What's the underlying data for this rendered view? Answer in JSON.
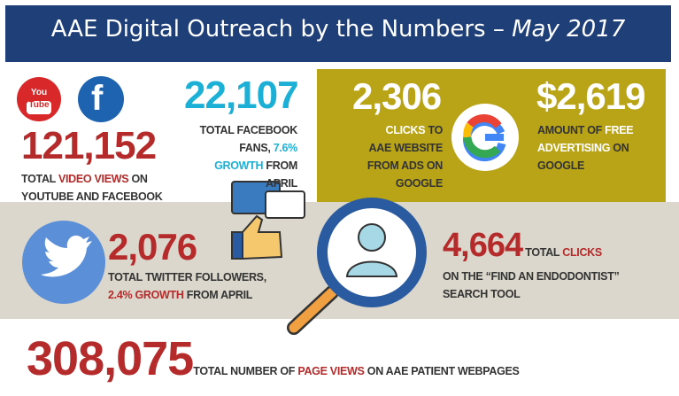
{
  "header": {
    "title": "AAE Digital Outreach by the Numbers – ",
    "title_month": "May 2017"
  },
  "icons": {
    "youtube": [
      "You",
      "Tube"
    ],
    "facebook": "f"
  },
  "stats": [
    {
      "number": "121,152",
      "caption": [
        "TOTAL ",
        "VIDEO VIEWS",
        " ON YOUTUBE AND FACEBOOK"
      ]
    },
    {
      "number": "22,107",
      "caption": [
        "TOTAL FACEBOOK FANS, ",
        "7.6% GROWTH",
        " FROM APRIL"
      ]
    },
    {
      "number": "2,306",
      "caption": [
        "CLICKS",
        " TO AAE WEBSITE FROM ADS ON GOOGLE"
      ]
    },
    {
      "number": "$2,619",
      "caption": [
        "AMOUNT OF ",
        "FREE ADVERTISING",
        " ON GOOGLE"
      ]
    },
    {
      "number": "2,076",
      "caption": [
        "TOTAL TWITTER FOLLOWERS, ",
        "2.4% GROWTH",
        " FROM APRIL"
      ]
    },
    {
      "number": "4,664",
      "caption": [
        " TOTAL ",
        "CLICKS",
        " ON THE “FIND AN ENDODONTIST” SEARCH TOOL"
      ]
    },
    {
      "number": "308,075",
      "caption": [
        "TOTAL NUMBER OF ",
        "PAGE VIEWS",
        " ON AAE PATIENT WEBPAGES"
      ]
    }
  ]
}
